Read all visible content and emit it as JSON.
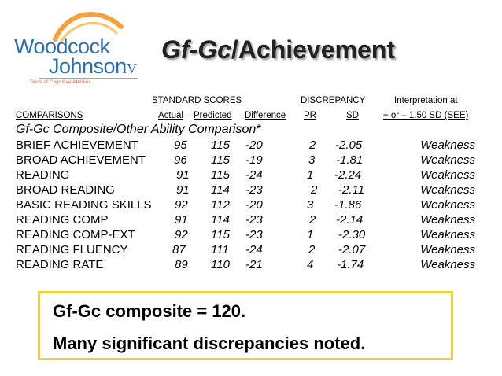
{
  "logo": {
    "word1": "Woodcock",
    "word2": "Johnson",
    "edition": "IV",
    "tagline": "Tests of Cognitive Abilities"
  },
  "title": {
    "italic_part": "Gf-Gc",
    "rest": "/Achievement"
  },
  "headers": {
    "standard_scores": "STANDARD SCORES",
    "discrepancy": "DISCREPANCY",
    "interpretation": "Interpretation at",
    "comparisons": "COMPARISONS",
    "actual": "Actual",
    "predicted": "Predicted",
    "difference": "Difference",
    "pr": "PR",
    "sd": "SD",
    "criterion": "+ or – 1.50 SD (SEE)"
  },
  "subheading": "Gf-Gc Composite/Other Ability Comparison*",
  "rows": [
    {
      "name": "BRIEF ACHIEVEMENT",
      "actual": "95",
      "predicted": "115",
      "difference": "-20",
      "pr": "2",
      "sd": "-2.05",
      "interp": "Weakness"
    },
    {
      "name": "BROAD ACHIEVEMENT",
      "actual": "96",
      "predicted": "115",
      "difference": "-19",
      "pr": "3",
      "sd": "-1.81",
      "interp": "Weakness"
    },
    {
      "name": "READING",
      "actual": "91",
      "predicted": "115",
      "difference": "-24",
      "pr": "1",
      "sd": "-2.24",
      "interp": "Weakness"
    },
    {
      "name": "BROAD READING",
      "actual": "91",
      "predicted": "114",
      "difference": "-23",
      "pr": "2",
      "sd": "-2.11",
      "interp": "Weakness"
    },
    {
      "name": "BASIC READING SKILLS",
      "actual": "92",
      "predicted": "112",
      "difference": "-20",
      "pr": "3",
      "sd": "-1.86",
      "interp": "Weakness"
    },
    {
      "name": "READING COMP",
      "actual": "91",
      "predicted": "114",
      "difference": "-23",
      "pr": "2",
      "sd": "-2.14",
      "interp": "Weakness"
    },
    {
      "name": "READING COMP-EXT",
      "actual": "92",
      "predicted": "115",
      "difference": "-23",
      "pr": "1",
      "sd": "-2.30",
      "interp": "Weakness"
    },
    {
      "name": "READING FLUENCY",
      "actual": "87",
      "predicted": "111",
      "difference": "-24",
      "pr": "2",
      "sd": "-2.07",
      "interp": "Weakness"
    },
    {
      "name": "READING RATE",
      "actual": "89",
      "predicted": "110",
      "difference": "-21",
      "pr": "4",
      "sd": "-1.74",
      "interp": "Weakness"
    }
  ],
  "callout": {
    "line1": "Gf-Gc composite = 120.",
    "line2": "Many significant discrepancies noted."
  },
  "colors": {
    "logo_blue": "#2a6fae",
    "logo_orange": "#f3a23a",
    "callout_border": "#f5cf3a"
  }
}
